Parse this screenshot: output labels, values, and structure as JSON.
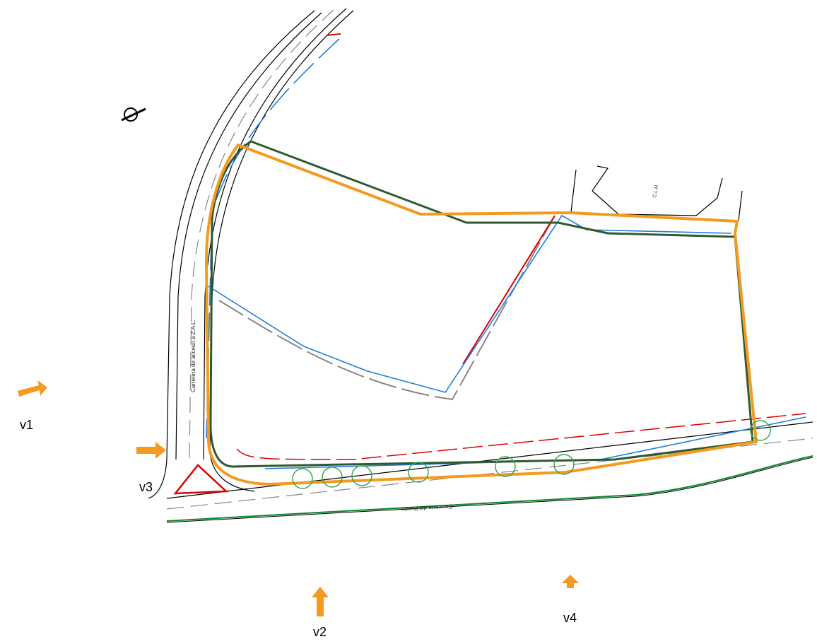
{
  "viewpoints": [
    {
      "label": "v1"
    },
    {
      "label": "v2"
    },
    {
      "label": "v3"
    },
    {
      "label": "v4"
    }
  ],
  "roads": [
    "Carretera de acceso a Z.A.L.",
    "Carretera del Puerto"
  ],
  "parcels": [
    "C.L.H."
  ]
}
